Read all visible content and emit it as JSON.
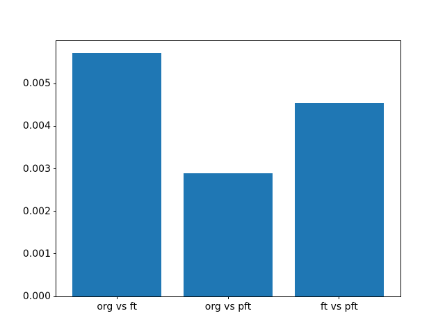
{
  "chart_data": {
    "type": "bar",
    "title": "",
    "xlabel": "",
    "ylabel": "",
    "categories": [
      "org vs ft",
      "org vs pft",
      "ft vs pft"
    ],
    "values": [
      0.00572,
      0.00289,
      0.00455
    ],
    "ylim": [
      0,
      0.006
    ],
    "yticks": [
      0,
      0.001,
      0.002,
      0.003,
      0.004,
      0.005
    ],
    "ytick_labels": [
      "0.000",
      "0.001",
      "0.002",
      "0.003",
      "0.004",
      "0.005"
    ],
    "grid": false,
    "legend": "none",
    "bar_color": "#1f77b4",
    "background_color": "#ffffff",
    "spine_color": "#000000"
  }
}
